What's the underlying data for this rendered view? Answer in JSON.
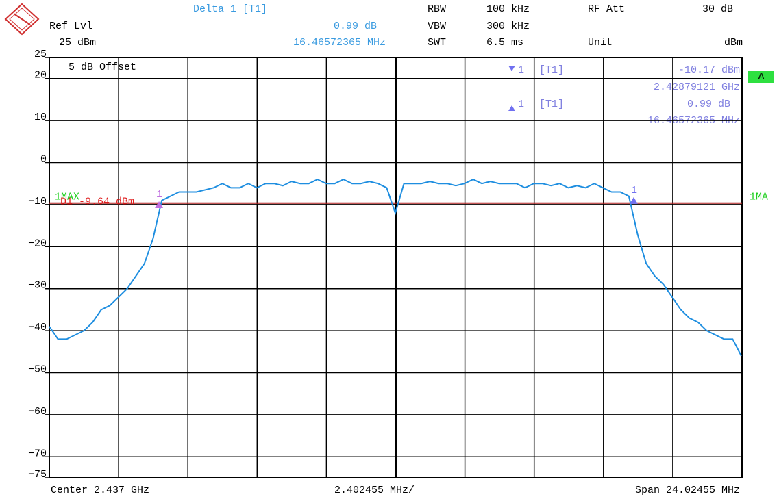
{
  "chart_data": {
    "type": "line",
    "header": {
      "ref_lvl_label": "Ref Lvl",
      "ref_lvl": "25 dBm",
      "delta_title": "Delta 1 [T1]",
      "delta_value": "0.99 dB",
      "delta_freq": "16.46572365 MHz",
      "rbw_label": "RBW",
      "rbw": "100 kHz",
      "vbw_label": "VBW",
      "vbw": "300 kHz",
      "swt_label": "SWT",
      "swt": "6.5 ms",
      "rf_att_label": "RF Att",
      "rf_att": "30 dB",
      "unit_label": "Unit",
      "unit": "dBm"
    },
    "offset": "5 dB Offset",
    "marker_info": [
      {
        "id": "1",
        "tag": "[T1]",
        "value": "-10.17 dBm",
        "freq": "2.42879121 GHz"
      },
      {
        "id": "1",
        "tag": "[T1]",
        "value": "0.99 dB",
        "freq": "16.46572365 MHz"
      }
    ],
    "footer": {
      "center": "Center 2.437 GHz",
      "div": "2.402455 MHz/",
      "span": "Span 24.02455 MHz"
    },
    "trace_label": "1MAX",
    "trace_label_right": "1MA",
    "screen": "A",
    "display_line": {
      "label": "D1 -9.64 dBm",
      "value": -9.64,
      "color": "#b02020"
    },
    "markers": [
      {
        "label": "1",
        "x": 2428.79121,
        "y": -10.17,
        "color": "#c070e0"
      },
      {
        "label": "1",
        "x": 2445.25693,
        "y": -9.18,
        "color": "#7070f0"
      }
    ],
    "xlim": [
      2424.987725,
      2449.012275
    ],
    "xticks": [
      2424.987725,
      2427.39018,
      2429.792635,
      2432.19509,
      2434.597545,
      2437,
      2439.402455,
      2441.80491,
      2444.207365,
      2446.60982,
      2449.012275
    ],
    "ylim": [
      -75,
      25
    ],
    "yticks": [
      25,
      20,
      10,
      0,
      {
        "value": -10,
        "label": "−10"
      },
      {
        "value": -20,
        "label": "−20"
      },
      {
        "value": -30,
        "label": "−30"
      },
      {
        "value": -40,
        "label": "−40"
      },
      {
        "value": -50,
        "label": "−50"
      },
      {
        "value": -60,
        "label": "−60"
      },
      {
        "value": -70,
        "label": "−70"
      },
      {
        "value": -75,
        "label": "−75"
      }
    ],
    "grid": true,
    "x": [
      2424.988,
      2425.288,
      2425.588,
      2425.888,
      2426.188,
      2426.488,
      2426.788,
      2427.088,
      2427.388,
      2427.688,
      2427.988,
      2428.288,
      2428.588,
      2428.888,
      2429.188,
      2429.488,
      2429.788,
      2430.088,
      2430.388,
      2430.688,
      2430.988,
      2431.288,
      2431.588,
      2431.888,
      2432.188,
      2432.488,
      2432.788,
      2433.088,
      2433.388,
      2433.688,
      2433.988,
      2434.288,
      2434.588,
      2434.888,
      2435.188,
      2435.488,
      2435.788,
      2436.088,
      2436.388,
      2436.688,
      2436.988,
      2437.288,
      2437.588,
      2437.888,
      2438.188,
      2438.488,
      2438.788,
      2439.088,
      2439.388,
      2439.688,
      2439.988,
      2440.288,
      2440.588,
      2440.888,
      2441.188,
      2441.488,
      2441.788,
      2442.088,
      2442.388,
      2442.688,
      2442.988,
      2443.288,
      2443.588,
      2443.888,
      2444.188,
      2444.488,
      2444.788,
      2445.088,
      2445.388,
      2445.688,
      2445.988,
      2446.288,
      2446.588,
      2446.888,
      2447.188,
      2447.488,
      2447.788,
      2448.088,
      2448.388,
      2448.688,
      2448.988
    ],
    "series": [
      {
        "color": "#1e8ee0",
        "values": [
          -39,
          -42,
          -42,
          -41,
          -40,
          -38,
          -35,
          -34,
          -32,
          -30,
          -27,
          -24,
          -18,
          -9,
          -8,
          -7,
          -7,
          -7,
          -6.5,
          -6,
          -5,
          -6,
          -6,
          -5,
          -6,
          -5,
          -5,
          -5.5,
          -4.5,
          -5,
          -5,
          -4,
          -5,
          -5,
          -4,
          -5,
          -5,
          -4.5,
          -5,
          -6,
          -12,
          -5,
          -5,
          -5,
          -4.5,
          -5,
          -5,
          -5.5,
          -5,
          -4,
          -5,
          -4.5,
          -5,
          -5,
          -5,
          -6,
          -5,
          -5,
          -5.5,
          -5,
          -6,
          -5.5,
          -6,
          -5,
          -6,
          -7,
          -7,
          -8,
          -17,
          -24,
          -27,
          -29,
          -32,
          -35,
          -37,
          -38,
          -40,
          -41,
          -42,
          -42,
          -46
        ]
      }
    ]
  }
}
